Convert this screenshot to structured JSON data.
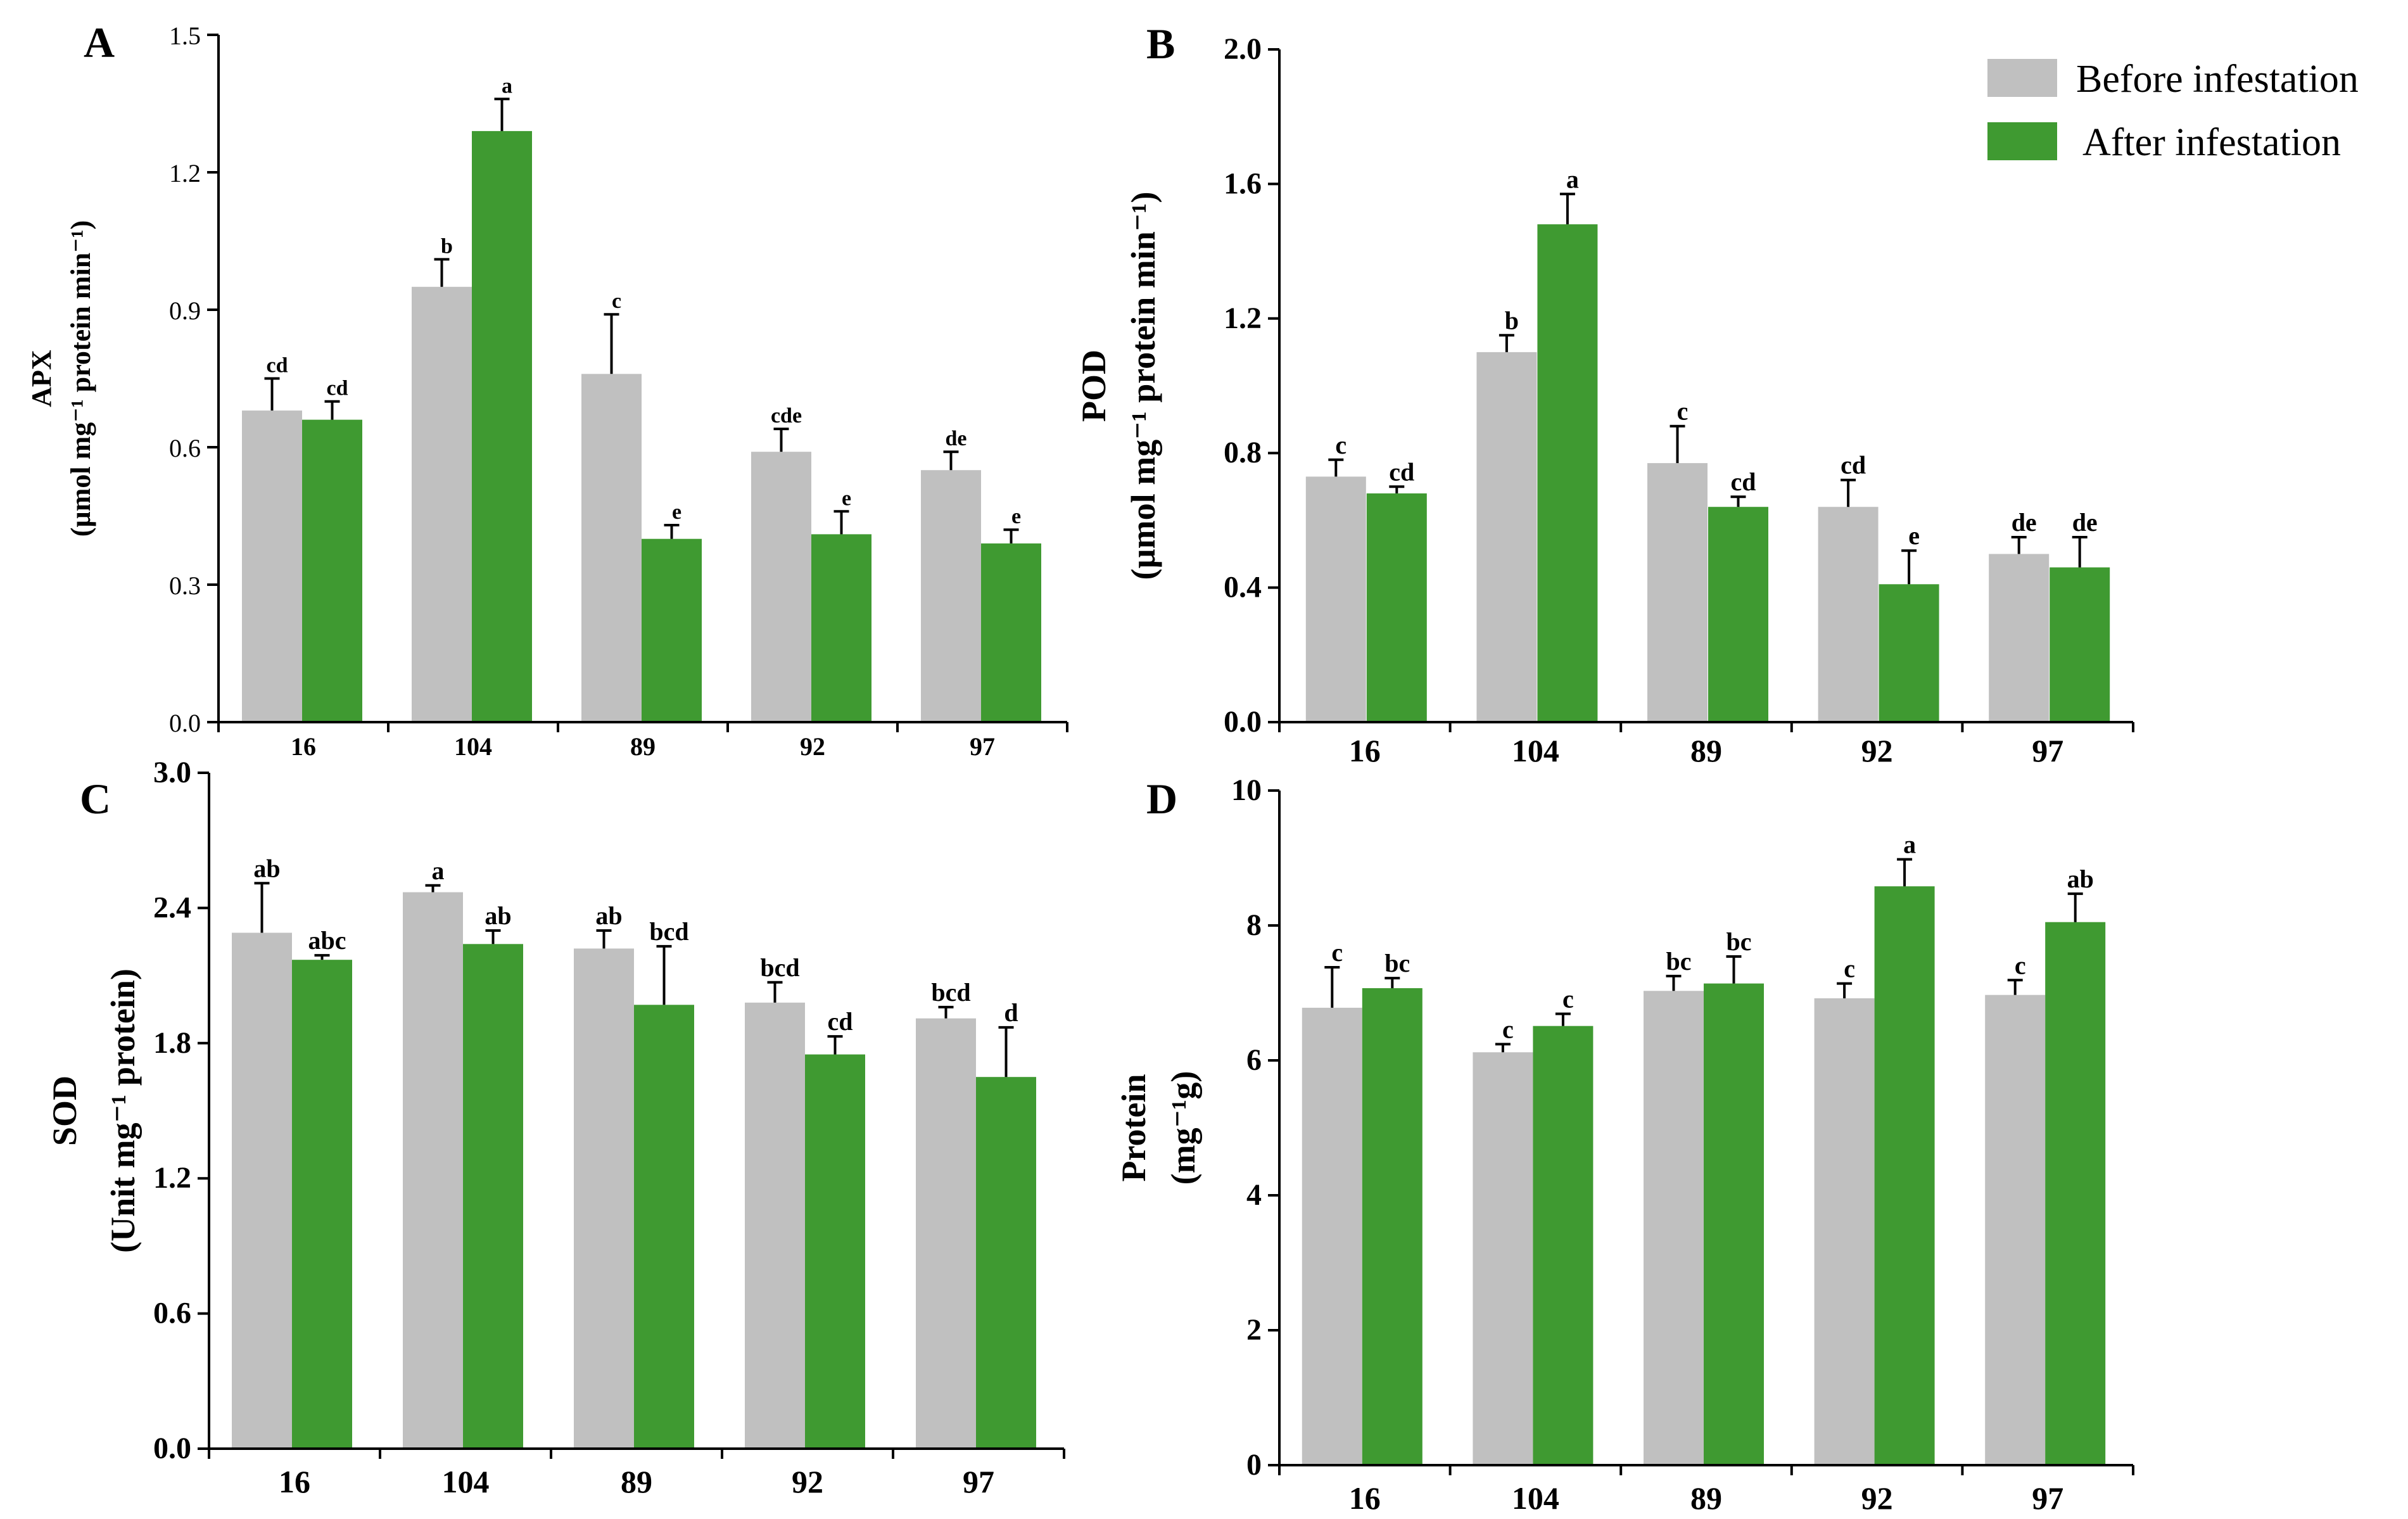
{
  "colors": {
    "before": "#c0c0c0",
    "after": "#3f9a31"
  },
  "legend": {
    "before_label": "Before infestation",
    "after_label": "After infestation",
    "placement": "top-right"
  },
  "chart_data": [
    {
      "panel": "A",
      "type": "bar",
      "ylabel_lines": [
        "APX",
        "(µmol mg⁻¹ protein min⁻¹)"
      ],
      "ylim": [
        0,
        1.5
      ],
      "yticks": [
        0.0,
        0.3,
        0.6,
        0.9,
        1.2,
        1.5
      ],
      "tick_decimals": 1,
      "categories": [
        "16",
        "104",
        "89",
        "92",
        "97"
      ],
      "series": [
        {
          "name": "Before infestation",
          "values": [
            0.68,
            0.95,
            0.76,
            0.59,
            0.55
          ],
          "errors": [
            0.07,
            0.06,
            0.13,
            0.05,
            0.04
          ],
          "labels": [
            "cd",
            "b",
            "c",
            "cde",
            "de"
          ]
        },
        {
          "name": "After infestation",
          "values": [
            0.66,
            1.29,
            0.4,
            0.41,
            0.39
          ],
          "errors": [
            0.04,
            0.07,
            0.03,
            0.05,
            0.03
          ],
          "labels": [
            "cd",
            "a",
            "e",
            "e",
            "e"
          ]
        }
      ],
      "grid": false
    },
    {
      "panel": "B",
      "type": "bar",
      "ylabel_lines": [
        "POD",
        "(µmol mg⁻¹ protein min⁻¹)"
      ],
      "ylim": [
        0,
        2.0
      ],
      "yticks": [
        0.0,
        0.4,
        0.8,
        1.2,
        1.6,
        2.0
      ],
      "tick_decimals": 1,
      "categories": [
        "16",
        "104",
        "89",
        "92",
        "97"
      ],
      "series": [
        {
          "name": "Before infestation",
          "values": [
            0.73,
            1.1,
            0.77,
            0.64,
            0.5
          ],
          "errors": [
            0.05,
            0.05,
            0.11,
            0.08,
            0.05
          ],
          "labels": [
            "c",
            "b",
            "c",
            "cd",
            "de"
          ]
        },
        {
          "name": "After infestation",
          "values": [
            0.68,
            1.48,
            0.64,
            0.41,
            0.46
          ],
          "errors": [
            0.02,
            0.09,
            0.03,
            0.1,
            0.09
          ],
          "labels": [
            "cd",
            "a",
            "cd",
            "e",
            "de"
          ]
        }
      ],
      "grid": false
    },
    {
      "panel": "C",
      "type": "bar",
      "ylabel_lines": [
        "SOD",
        "(Unit mg⁻¹ protein)"
      ],
      "ylim": [
        0,
        3.0
      ],
      "yticks": [
        0.0,
        0.6,
        1.2,
        1.8,
        2.4,
        3.0
      ],
      "tick_decimals": 1,
      "categories": [
        "16",
        "104",
        "89",
        "92",
        "97"
      ],
      "series": [
        {
          "name": "Before infestation",
          "values": [
            2.29,
            2.47,
            2.22,
            1.98,
            1.91
          ],
          "errors": [
            0.22,
            0.03,
            0.08,
            0.09,
            0.05
          ],
          "labels": [
            "ab",
            "a",
            "ab",
            "bcd",
            "bcd"
          ]
        },
        {
          "name": "After infestation",
          "values": [
            2.17,
            2.24,
            1.97,
            1.75,
            1.65
          ],
          "errors": [
            0.02,
            0.06,
            0.26,
            0.08,
            0.22
          ],
          "labels": [
            "abc",
            "ab",
            "bcd",
            "cd",
            "d"
          ]
        }
      ],
      "grid": false
    },
    {
      "panel": "D",
      "type": "bar",
      "ylabel_lines": [
        "Protein",
        "(mg⁻¹g)"
      ],
      "ylim": [
        0,
        10
      ],
      "yticks": [
        0,
        2,
        4,
        6,
        8,
        10
      ],
      "tick_decimals": 0,
      "categories": [
        "16",
        "104",
        "89",
        "92",
        "97"
      ],
      "series": [
        {
          "name": "Before infestation",
          "values": [
            6.78,
            6.12,
            7.03,
            6.92,
            6.97
          ],
          "errors": [
            0.6,
            0.12,
            0.22,
            0.22,
            0.22
          ],
          "labels": [
            "c",
            "c",
            "bc",
            "c",
            "c"
          ]
        },
        {
          "name": "After infestation",
          "values": [
            7.07,
            6.51,
            7.14,
            8.58,
            8.05
          ],
          "errors": [
            0.15,
            0.18,
            0.4,
            0.4,
            0.42
          ],
          "labels": [
            "bc",
            "c",
            "bc",
            "a",
            "ab"
          ]
        }
      ],
      "grid": false
    }
  ]
}
